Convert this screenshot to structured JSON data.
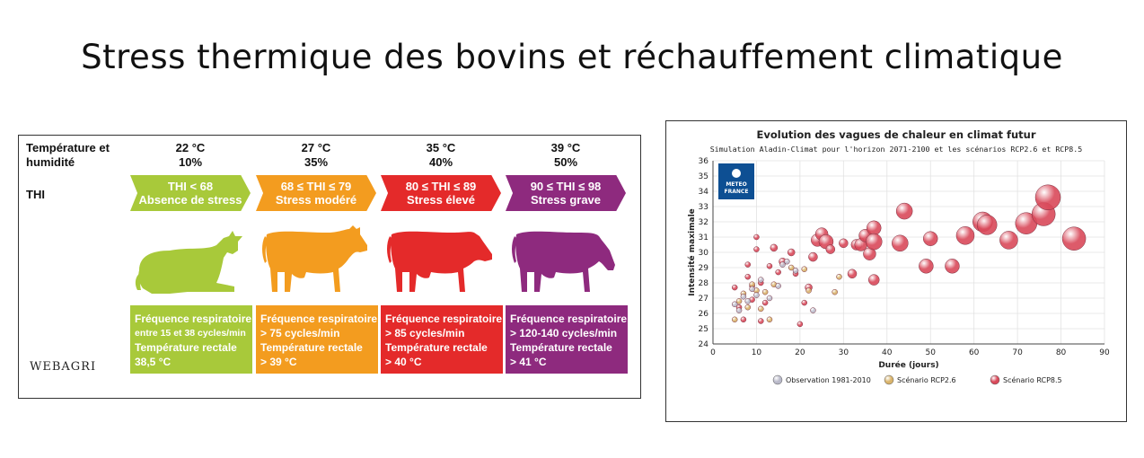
{
  "page": {
    "title": "Stress thermique des bovins et réchauffement climatique"
  },
  "infographic": {
    "header_label": [
      "Température et",
      "humidité"
    ],
    "thi_label": "THI",
    "credit": "WEBAGRI",
    "columns": [
      {
        "temp": "22 °C",
        "humidity": "10%",
        "thi": "THI < 68",
        "stress": "Absence de stress",
        "color": "#a8c93a",
        "pose": "lying",
        "box_lines": [
          "Fréquence respiratoire",
          "entre 15 et 38 cycles/min",
          "Température rectale",
          "38,5 °C"
        ]
      },
      {
        "temp": "27 °C",
        "humidity": "35%",
        "thi": "68 ≤ THI ≤ 79",
        "stress": "Stress modéré",
        "color": "#f39c1f",
        "pose": "standing",
        "box_lines": [
          "Fréquence respiratoire",
          "> 75 cycles/min",
          "Température rectale",
          "> 39 °C"
        ]
      },
      {
        "temp": "35 °C",
        "humidity": "40%",
        "thi": "80 ≤ THI ≤ 89",
        "stress": "Stress élevé",
        "color": "#e42a2a",
        "pose": "standing",
        "box_lines": [
          "Fréquence respiratoire",
          "> 85 cycles/min",
          "Température rectale",
          "> 40 °C"
        ]
      },
      {
        "temp": "39 °C",
        "humidity": "50%",
        "thi": "90 ≤ THI ≤ 98",
        "stress": "Stress grave",
        "color": "#8e2a7e",
        "pose": "grazing",
        "box_lines": [
          "Fréquence respiratoire",
          "> 120-140 cycles/min",
          "Température rectale",
          "> 41 °C"
        ]
      }
    ]
  },
  "chart_data": {
    "type": "scatter",
    "title": "Evolution des vagues de chaleur en climat futur",
    "subtitle": "Simulation Aladin-Climat pour l'horizon 2071-2100 et les scénarios RCP2.6 et RCP8.5",
    "xlabel": "Durée (jours)",
    "ylabel": "Intensité maximale",
    "xlim": [
      0,
      90
    ],
    "ylim": [
      24,
      36
    ],
    "xticks": [
      0,
      10,
      20,
      30,
      40,
      50,
      60,
      70,
      80,
      90
    ],
    "yticks": [
      24,
      25,
      26,
      27,
      28,
      29,
      30,
      31,
      32,
      33,
      34,
      35,
      36
    ],
    "grid": true,
    "legend_position": "bottom",
    "logo_text": [
      "METEO",
      "FRANCE"
    ],
    "series": [
      {
        "name": "Observation 1981-2010",
        "color": "#b9b9c9",
        "points": [
          [
            5,
            26.6
          ],
          [
            6,
            26.2
          ],
          [
            7,
            27.1
          ],
          [
            8,
            26.8
          ],
          [
            9,
            27.6
          ],
          [
            10,
            27.2
          ],
          [
            11,
            28.2
          ],
          [
            13,
            27.0
          ],
          [
            15,
            27.8
          ],
          [
            16,
            29.2
          ],
          [
            17,
            29.4
          ],
          [
            19,
            28.8
          ],
          [
            23,
            26.2
          ]
        ]
      },
      {
        "name": "Scénario RCP2.6",
        "color": "#d9b36a",
        "points": [
          [
            5,
            25.6
          ],
          [
            6,
            26.8
          ],
          [
            7,
            27.3
          ],
          [
            8,
            26.4
          ],
          [
            9,
            27.9
          ],
          [
            10,
            27.5
          ],
          [
            11,
            26.3
          ],
          [
            12,
            27.4
          ],
          [
            13,
            25.6
          ],
          [
            14,
            27.9
          ],
          [
            18,
            29.0
          ],
          [
            21,
            28.9
          ],
          [
            22,
            27.5
          ],
          [
            28,
            27.4
          ],
          [
            29,
            28.4
          ]
        ]
      },
      {
        "name": "Scénario RCP8.5",
        "color": "#d9495a",
        "points": [
          [
            5,
            27.7
          ],
          [
            6,
            26.4
          ],
          [
            7,
            25.6
          ],
          [
            8,
            28.4
          ],
          [
            8,
            29.2
          ],
          [
            9,
            26.9
          ],
          [
            9,
            27.8
          ],
          [
            10,
            31.0
          ],
          [
            10,
            30.2
          ],
          [
            11,
            28.0
          ],
          [
            11,
            25.5
          ],
          [
            12,
            26.7
          ],
          [
            13,
            29.1
          ],
          [
            14,
            30.3
          ],
          [
            15,
            28.7
          ],
          [
            16,
            29.4
          ],
          [
            18,
            30.0
          ],
          [
            19,
            28.6
          ],
          [
            20,
            25.3
          ],
          [
            21,
            26.7
          ],
          [
            22,
            27.7
          ],
          [
            23,
            29.7
          ],
          [
            24,
            30.8
          ],
          [
            25,
            31.2
          ],
          [
            26,
            30.7
          ],
          [
            27,
            30.2
          ],
          [
            30,
            30.6
          ],
          [
            32,
            28.6
          ],
          [
            33,
            30.5
          ],
          [
            34,
            30.5
          ],
          [
            35,
            31.1
          ],
          [
            36,
            29.9
          ],
          [
            37,
            31.6
          ],
          [
            37,
            30.7
          ],
          [
            37,
            28.2
          ],
          [
            43,
            30.6
          ],
          [
            44,
            32.7
          ],
          [
            49,
            29.1
          ],
          [
            50,
            30.9
          ],
          [
            55,
            29.1
          ],
          [
            58,
            31.1
          ],
          [
            62,
            32.0
          ],
          [
            63,
            31.8
          ],
          [
            68,
            30.8
          ],
          [
            72,
            31.9
          ],
          [
            76,
            32.5
          ],
          [
            77,
            33.6
          ],
          [
            83,
            30.9
          ]
        ],
        "sizes": [
          3,
          3,
          3,
          3,
          3,
          3,
          3,
          3,
          3,
          3,
          3,
          3,
          3,
          4,
          3,
          4,
          4,
          3,
          3,
          3,
          4,
          5,
          7,
          7,
          8,
          5,
          5,
          5,
          6,
          7,
          7,
          7,
          8,
          9,
          6,
          9,
          9,
          8,
          8,
          8,
          10,
          11,
          11,
          10,
          12,
          13,
          14,
          13
        ]
      }
    ]
  }
}
